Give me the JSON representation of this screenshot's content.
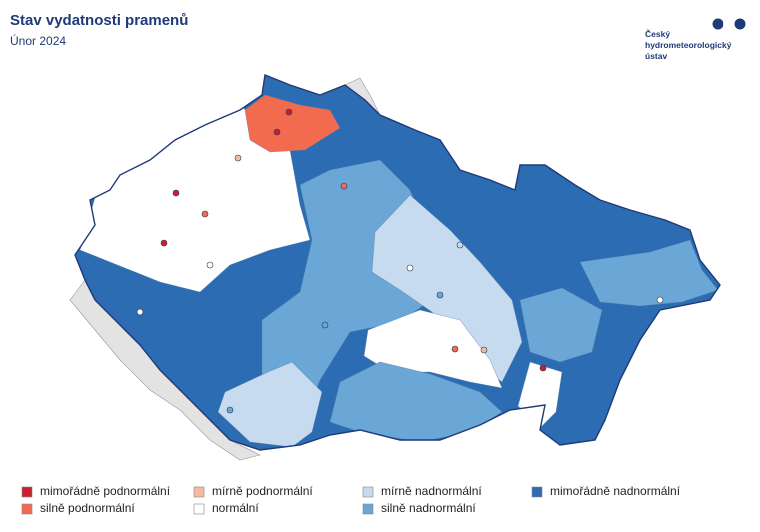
{
  "header": {
    "title": "Stav vydatnosti pramenů",
    "subtitle": "Únor 2024"
  },
  "logo": {
    "lines": [
      "Český",
      "hydrometeorologický",
      "ústav"
    ]
  },
  "legend": {
    "items": [
      {
        "label": "mimořádně podnormální",
        "color": "#c8202e"
      },
      {
        "label": "silně podnormální",
        "color": "#f26b4f"
      },
      {
        "label": "mírně podnormální",
        "color": "#f6b9a3"
      },
      {
        "label": "normální",
        "color": "#ffffff"
      },
      {
        "label": "mírně nadnormální",
        "color": "#c6dbef"
      },
      {
        "label": "silně nadnormální",
        "color": "#6aa6d6"
      },
      {
        "label": "mimořádně nadnormální",
        "color": "#2b6cb3"
      }
    ]
  }
}
